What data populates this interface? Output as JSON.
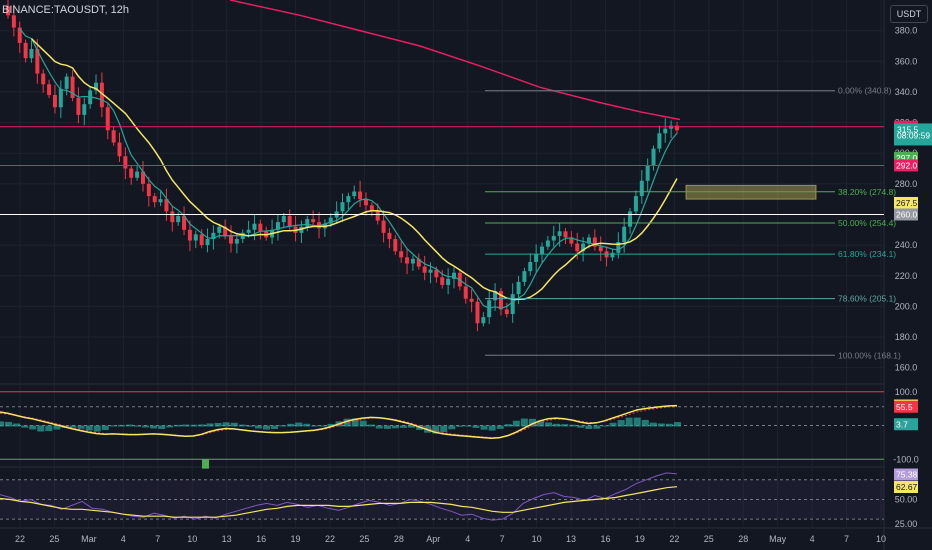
{
  "header": {
    "symbol": "BINANCE:TAOUSDT, 12h",
    "currency": "USDT"
  },
  "colors": {
    "up": "#26a69a",
    "down": "#f23645",
    "ma_fast": "#26a69a",
    "ma_slow": "#f5e663",
    "ma_long": "#e91e63",
    "grid": "#1e222d",
    "axis_text": "#b2b5be"
  },
  "chart_data": [
    {
      "type": "candlestick",
      "title": "BINANCE:TAOUSDT, 12h",
      "ylim": [
        150,
        400
      ],
      "y_ticks": [
        160,
        180,
        200,
        220,
        240,
        260,
        280,
        300,
        320,
        340,
        360,
        380
      ],
      "x_tick_labels": [
        "22",
        "25",
        "Mar",
        "4",
        "7",
        "10",
        "13",
        "16",
        "19",
        "22",
        "25",
        "28",
        "Apr",
        "4",
        "7",
        "10",
        "13",
        "16",
        "19",
        "22",
        "25",
        "28",
        "May",
        "4",
        "7",
        "10"
      ],
      "closes": [
        390,
        382,
        372,
        362,
        368,
        352,
        345,
        338,
        330,
        342,
        350,
        336,
        325,
        332,
        341,
        346,
        330,
        315,
        307,
        298,
        290,
        284,
        288,
        280,
        272,
        268,
        270,
        262,
        255,
        259,
        250,
        243,
        247,
        240,
        244,
        248,
        252,
        246,
        241,
        244,
        248,
        250,
        254,
        249,
        245,
        250,
        255,
        259,
        252,
        248,
        252,
        257,
        255,
        251,
        254,
        258,
        262,
        268,
        272,
        275,
        270,
        266,
        262,
        256,
        248,
        244,
        236,
        232,
        228,
        231,
        226,
        222,
        224,
        219,
        214,
        218,
        222,
        213,
        205,
        203,
        189,
        193,
        204,
        210,
        198,
        195,
        208,
        216,
        223,
        229,
        234,
        239,
        243,
        246,
        249,
        245,
        241,
        236,
        241,
        245,
        239,
        236,
        232,
        235,
        242,
        252,
        262,
        272,
        282,
        292,
        303,
        313,
        316,
        318,
        315
      ],
      "fib_levels": [
        {
          "label": "0.00% (340.8)",
          "value": 340.8
        },
        {
          "label": "38.20% (274.8)",
          "value": 274.8
        },
        {
          "label": "50.00% (254.4)",
          "value": 254.4
        },
        {
          "label": "61.80% (234.1)",
          "value": 234.1
        },
        {
          "label": "78.60% (205.1)",
          "value": 205.1
        },
        {
          "label": "100.00% (168.1)",
          "value": 168.1
        }
      ],
      "horizontal_lines": [
        {
          "value": 317.3,
          "color": "#e91e63"
        },
        {
          "value": 292.0,
          "color": "#e91e63"
        },
        {
          "value": 260.0,
          "color": "#ffffff"
        }
      ],
      "zone": {
        "from": 270,
        "to": 279,
        "color": "#f5e663"
      },
      "price_badges": [
        {
          "label": "317.3",
          "value": 317.3,
          "color": "#e91e63"
        },
        {
          "label": "317.0",
          "value": 317.0,
          "color": "#e91e63"
        },
        {
          "label": "315.5",
          "value": 315.5,
          "color": "#26a69a"
        },
        {
          "label": "08:09:59",
          "value": 311.4,
          "color": "#26a69a"
        },
        {
          "label": "297.0",
          "value": 297.0,
          "color": "#4caf50"
        },
        {
          "label": "292.0",
          "value": 292.0,
          "color": "#e91e63"
        },
        {
          "label": "267.5",
          "value": 267.5,
          "color": "#f5e663"
        },
        {
          "label": "260.0",
          "value": 260.0,
          "color": "#9598a1"
        }
      ]
    },
    {
      "type": "line",
      "title": "oscillator",
      "ylim": [
        -120,
        120
      ],
      "y_ticks": [
        {
          "label": "100.0",
          "value": 100
        },
        {
          "label": "-100.0",
          "value": -100
        }
      ],
      "series": [
        {
          "values": [
            40,
            36,
            30,
            24,
            20,
            14,
            8,
            2,
            -4,
            -10,
            -15,
            -20,
            -24,
            -26,
            -25,
            -26,
            -27,
            -27,
            -26,
            -25,
            -26,
            -28,
            -30,
            -32,
            -31,
            -26,
            -18,
            -12,
            -9,
            -10,
            -13,
            -16,
            -18,
            -20,
            -21,
            -21,
            -20,
            -18,
            -16,
            -14,
            -10,
            -4,
            4,
            12,
            18,
            22,
            24,
            23,
            20,
            16,
            10,
            4,
            -4,
            -12,
            -20,
            -25,
            -28,
            -30,
            -32,
            -34,
            -36,
            -38,
            -36,
            -30,
            -20,
            -8,
            4,
            14,
            20,
            22,
            20,
            16,
            10,
            6,
            8,
            14,
            22,
            30,
            38,
            46,
            50,
            53,
            56,
            58,
            59
          ]
        },
        {
          "values": [
            36,
            34,
            30,
            26,
            22,
            17,
            11,
            5,
            -1,
            -7,
            -12,
            -17,
            -21,
            -24,
            -25,
            -25,
            -26,
            -26,
            -26,
            -25,
            -25,
            -27,
            -29,
            -31,
            -31,
            -28,
            -22,
            -16,
            -12,
            -11,
            -12,
            -15,
            -17,
            -19,
            -20,
            -21,
            -20,
            -19,
            -17,
            -15,
            -12,
            -7,
            0,
            7,
            13,
            18,
            22,
            23,
            21,
            18,
            13,
            7,
            0,
            -7,
            -15,
            -21,
            -25,
            -28,
            -30,
            -32,
            -34,
            -36,
            -35,
            -31,
            -23,
            -13,
            -2,
            8,
            15,
            19,
            19,
            17,
            13,
            9,
            9,
            12,
            18,
            25,
            32,
            40,
            45,
            49,
            52,
            55,
            56
          ]
        }
      ],
      "badges": [
        {
          "label": "59.2",
          "value": 59.2,
          "color": "#f5e663"
        },
        {
          "label": "55.5",
          "value": 55.5,
          "color": "#f23645"
        },
        {
          "label": "3.7",
          "value": 3.7,
          "color": "#26a69a"
        }
      ]
    },
    {
      "type": "line",
      "title": "rsi",
      "ylim": [
        22,
        82
      ],
      "y_ticks": [
        {
          "label": "50.00",
          "value": 50
        },
        {
          "label": "25.00",
          "value": 25
        }
      ],
      "series": [
        {
          "values": [
            55,
            52,
            48,
            50,
            45,
            44,
            40,
            44,
            48,
            41,
            40,
            37,
            35,
            33,
            32,
            36,
            34,
            31,
            33,
            30,
            33,
            31,
            35,
            38,
            41,
            44,
            46,
            44,
            47,
            45,
            42,
            44,
            41,
            39,
            42,
            46,
            49,
            47,
            44,
            46,
            50,
            48,
            45,
            41,
            38,
            34,
            35,
            31,
            29,
            30,
            36,
            46,
            51,
            55,
            57,
            53,
            52,
            49,
            54,
            51,
            56,
            60,
            66,
            70,
            74,
            77,
            76
          ]
        },
        {
          "values": [
            51,
            50,
            48,
            47,
            45,
            43,
            41,
            40,
            40,
            39,
            38,
            37,
            35,
            34,
            33,
            33,
            33,
            32,
            32,
            32,
            32,
            32,
            33,
            34,
            36,
            38,
            40,
            41,
            43,
            44,
            44,
            44,
            44,
            43,
            43,
            44,
            45,
            46,
            46,
            46,
            47,
            47,
            47,
            46,
            45,
            43,
            42,
            40,
            38,
            37,
            37,
            39,
            41,
            43,
            45,
            47,
            48,
            49,
            50,
            51,
            52,
            54,
            56,
            58,
            60,
            62,
            63
          ]
        }
      ],
      "badges": [
        {
          "label": "75.38",
          "value": 75.38,
          "color": "#b39ddb"
        },
        {
          "label": "62.67",
          "value": 62.67,
          "color": "#f5e663"
        }
      ]
    }
  ]
}
